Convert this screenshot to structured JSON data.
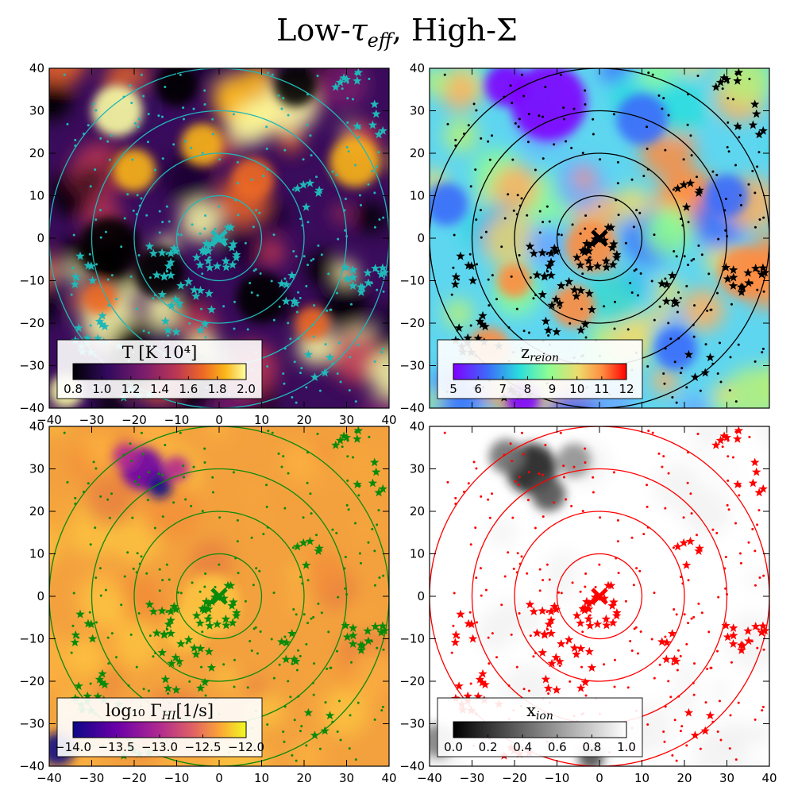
{
  "title": {
    "prefix": "Low-",
    "tau": "τ",
    "tau_sub": "eff",
    "suffix": ", High-Σ"
  },
  "chart_data": [
    {
      "type": "heatmap",
      "id": "temperature",
      "xlim": [
        -40,
        40
      ],
      "ylim": [
        -40,
        40
      ],
      "xticks": [
        -40,
        -30,
        -20,
        -10,
        0,
        10,
        20,
        30,
        40
      ],
      "yticks": [
        -40,
        -30,
        -20,
        -10,
        0,
        10,
        20,
        30,
        40
      ],
      "xtick_labels": [
        "−40",
        "−30",
        "−20",
        "−10",
        "0",
        "10",
        "20",
        "30",
        "40"
      ],
      "ytick_labels": [
        "−40",
        "−30",
        "−20",
        "−10",
        "0",
        "10",
        "20",
        "30",
        "40"
      ],
      "colorbar": {
        "label": "T [K 10⁴]",
        "ticks": [
          "0.8",
          "1.0",
          "1.2",
          "1.4",
          "1.6",
          "1.8",
          "2.0"
        ],
        "colormap": "inferno"
      },
      "ring_radii": [
        10,
        20,
        30,
        40
      ],
      "marker_color": "#20b8b8",
      "center": [
        0,
        0
      ]
    },
    {
      "type": "heatmap",
      "id": "z_reion",
      "xlim": [
        -40,
        40
      ],
      "ylim": [
        -40,
        40
      ],
      "xticks": [
        -40,
        -30,
        -20,
        -10,
        0,
        10,
        20,
        30,
        40
      ],
      "yticks": [
        -40,
        -30,
        -20,
        -10,
        0,
        10,
        20,
        30,
        40
      ],
      "ytick_labels": [
        "−40",
        "−30",
        "−20",
        "−10",
        "0",
        "10",
        "20",
        "30",
        "40"
      ],
      "colorbar": {
        "label": "z",
        "label_sub": "reion",
        "ticks": [
          "5",
          "6",
          "7",
          "8",
          "9",
          "10",
          "11",
          "12"
        ],
        "colormap": "rainbow"
      },
      "ring_radii": [
        10,
        20,
        30,
        40
      ],
      "marker_color": "#000000",
      "center": [
        0,
        0
      ]
    },
    {
      "type": "heatmap",
      "id": "gamma_hi",
      "xlim": [
        -40,
        40
      ],
      "ylim": [
        -40,
        40
      ],
      "xticks": [
        -40,
        -30,
        -20,
        -10,
        0,
        10,
        20,
        30,
        40
      ],
      "yticks": [
        -40,
        -30,
        -20,
        -10,
        0,
        10,
        20,
        30,
        40
      ],
      "xtick_labels": [
        "−40",
        "−30",
        "−20",
        "−10",
        "0",
        "10",
        "20",
        "30",
        "40"
      ],
      "ytick_labels": [
        "−40",
        "−30",
        "−20",
        "−10",
        "0",
        "10",
        "20",
        "30",
        "40"
      ],
      "colorbar": {
        "label": "log₁₀ Γ",
        "label_sub": "HI",
        "label_suffix": "[1/s]",
        "ticks": [
          "−14.0",
          "−13.5",
          "−13.0",
          "−12.5",
          "−12.0"
        ],
        "colormap": "plasma"
      },
      "ring_radii": [
        10,
        20,
        30,
        40
      ],
      "marker_color": "#0a8a0a",
      "center": [
        0,
        0
      ]
    },
    {
      "type": "heatmap",
      "id": "x_ion",
      "xlim": [
        -40,
        40
      ],
      "ylim": [
        -40,
        40
      ],
      "xticks": [
        -40,
        -30,
        -20,
        -10,
        0,
        10,
        20,
        30,
        40
      ],
      "yticks": [
        -40,
        -30,
        -20,
        -10,
        0,
        10,
        20,
        30,
        40
      ],
      "xtick_labels": [
        "−40",
        "−30",
        "−20",
        "−10",
        "0",
        "10",
        "20",
        "30",
        "40"
      ],
      "ytick_labels": [
        "−40",
        "−30",
        "−20",
        "−10",
        "0",
        "10",
        "20",
        "30",
        "40"
      ],
      "colorbar": {
        "label": "x",
        "label_sub": "ion",
        "ticks": [
          "0.0",
          "0.2",
          "0.4",
          "0.6",
          "0.8",
          "1.0"
        ],
        "colormap": "gray"
      },
      "ring_radii": [
        10,
        20,
        30,
        40
      ],
      "marker_color": "#ff0000",
      "center": [
        0,
        0
      ]
    }
  ]
}
